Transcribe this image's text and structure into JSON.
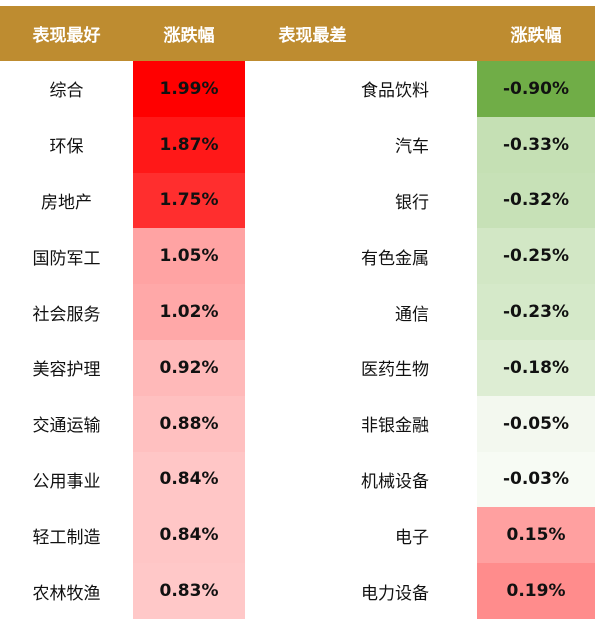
{
  "headers": {
    "best_label": "表现最好",
    "best_change": "涨跌幅",
    "worst_label": "表现最差",
    "worst_change": "涨跌幅"
  },
  "colors": {
    "header_bg": "#be8c30",
    "header_text": "#ffffff"
  },
  "best": [
    {
      "name": "综合",
      "change": "1.99%",
      "color": "#ff0000"
    },
    {
      "name": "环保",
      "change": "1.87%",
      "color": "#ff1818"
    },
    {
      "name": "房地产",
      "change": "1.75%",
      "color": "#ff2e2e"
    },
    {
      "name": "国防军工",
      "change": "1.05%",
      "color": "#ffa3a3"
    },
    {
      "name": "社会服务",
      "change": "1.02%",
      "color": "#ffa8a8"
    },
    {
      "name": "美容护理",
      "change": "0.92%",
      "color": "#ffb9b9"
    },
    {
      "name": "交通运输",
      "change": "0.88%",
      "color": "#ffc0c0"
    },
    {
      "name": "公用事业",
      "change": "0.84%",
      "color": "#ffc6c6"
    },
    {
      "name": "轻工制造",
      "change": "0.84%",
      "color": "#ffc6c6"
    },
    {
      "name": "农林牧渔",
      "change": "0.83%",
      "color": "#ffc8c8"
    }
  ],
  "worst": [
    {
      "name": "食品饮料",
      "change": "-0.90%",
      "color": "#70ad47"
    },
    {
      "name": "汽车",
      "change": "-0.33%",
      "color": "#c5e0b4"
    },
    {
      "name": "银行",
      "change": "-0.32%",
      "color": "#c7e1b7"
    },
    {
      "name": "有色金属",
      "change": "-0.25%",
      "color": "#d2e7c5"
    },
    {
      "name": "通信",
      "change": "-0.23%",
      "color": "#d5e9c9"
    },
    {
      "name": "医药生物",
      "change": "-0.18%",
      "color": "#ddedd3"
    },
    {
      "name": "非银金融",
      "change": "-0.05%",
      "color": "#f3f8ef"
    },
    {
      "name": "机械设备",
      "change": "-0.03%",
      "color": "#f7fbf4"
    },
    {
      "name": "电子",
      "change": "0.15%",
      "color": "#ffa0a0"
    },
    {
      "name": "电力设备",
      "change": "0.19%",
      "color": "#ff8c8c"
    }
  ]
}
